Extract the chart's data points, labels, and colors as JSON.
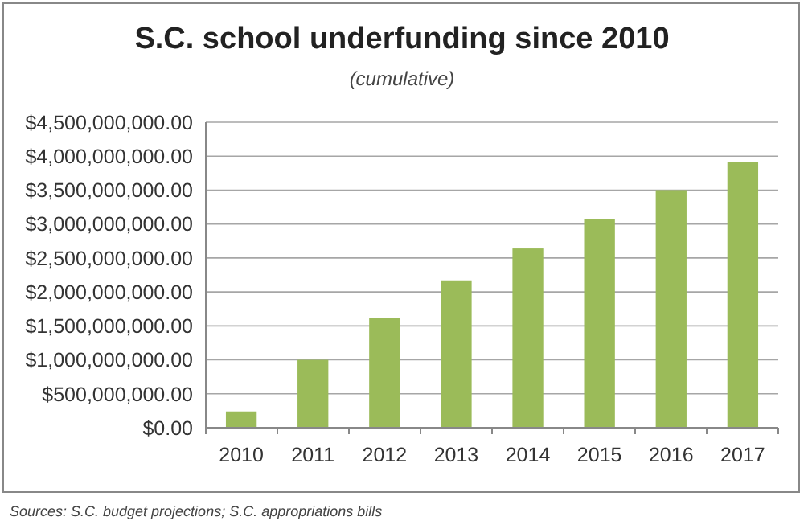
{
  "chart_data": {
    "type": "bar",
    "title": "S.C. school underfunding since 2010",
    "subtitle": "(cumulative)",
    "categories": [
      "2010",
      "2011",
      "2012",
      "2013",
      "2014",
      "2015",
      "2016",
      "2017"
    ],
    "values": [
      240000000,
      1000000000,
      1620000000,
      2170000000,
      2640000000,
      3070000000,
      3500000000,
      3910000000
    ],
    "color": "#9bbb59",
    "ylim": [
      0,
      4500000000
    ],
    "yticks": [
      {
        "value": 0,
        "label": "$0.00"
      },
      {
        "value": 500000000,
        "label": "$500,000,000.00"
      },
      {
        "value": 1000000000,
        "label": "$1,000,000,000.00"
      },
      {
        "value": 1500000000,
        "label": "$1,500,000,000.00"
      },
      {
        "value": 2000000000,
        "label": "$2,000,000,000.00"
      },
      {
        "value": 2500000000,
        "label": "$2,500,000,000.00"
      },
      {
        "value": 3000000000,
        "label": "$3,000,000,000.00"
      },
      {
        "value": 3500000000,
        "label": "$3,500,000,000.00"
      },
      {
        "value": 4000000000,
        "label": "$4,000,000,000.00"
      },
      {
        "value": 4500000000,
        "label": "$4,500,000,000.00"
      }
    ],
    "grid": "y",
    "annotations": [
      "Sources:  S.C. budget projections; S.C. appropriations bills"
    ]
  }
}
